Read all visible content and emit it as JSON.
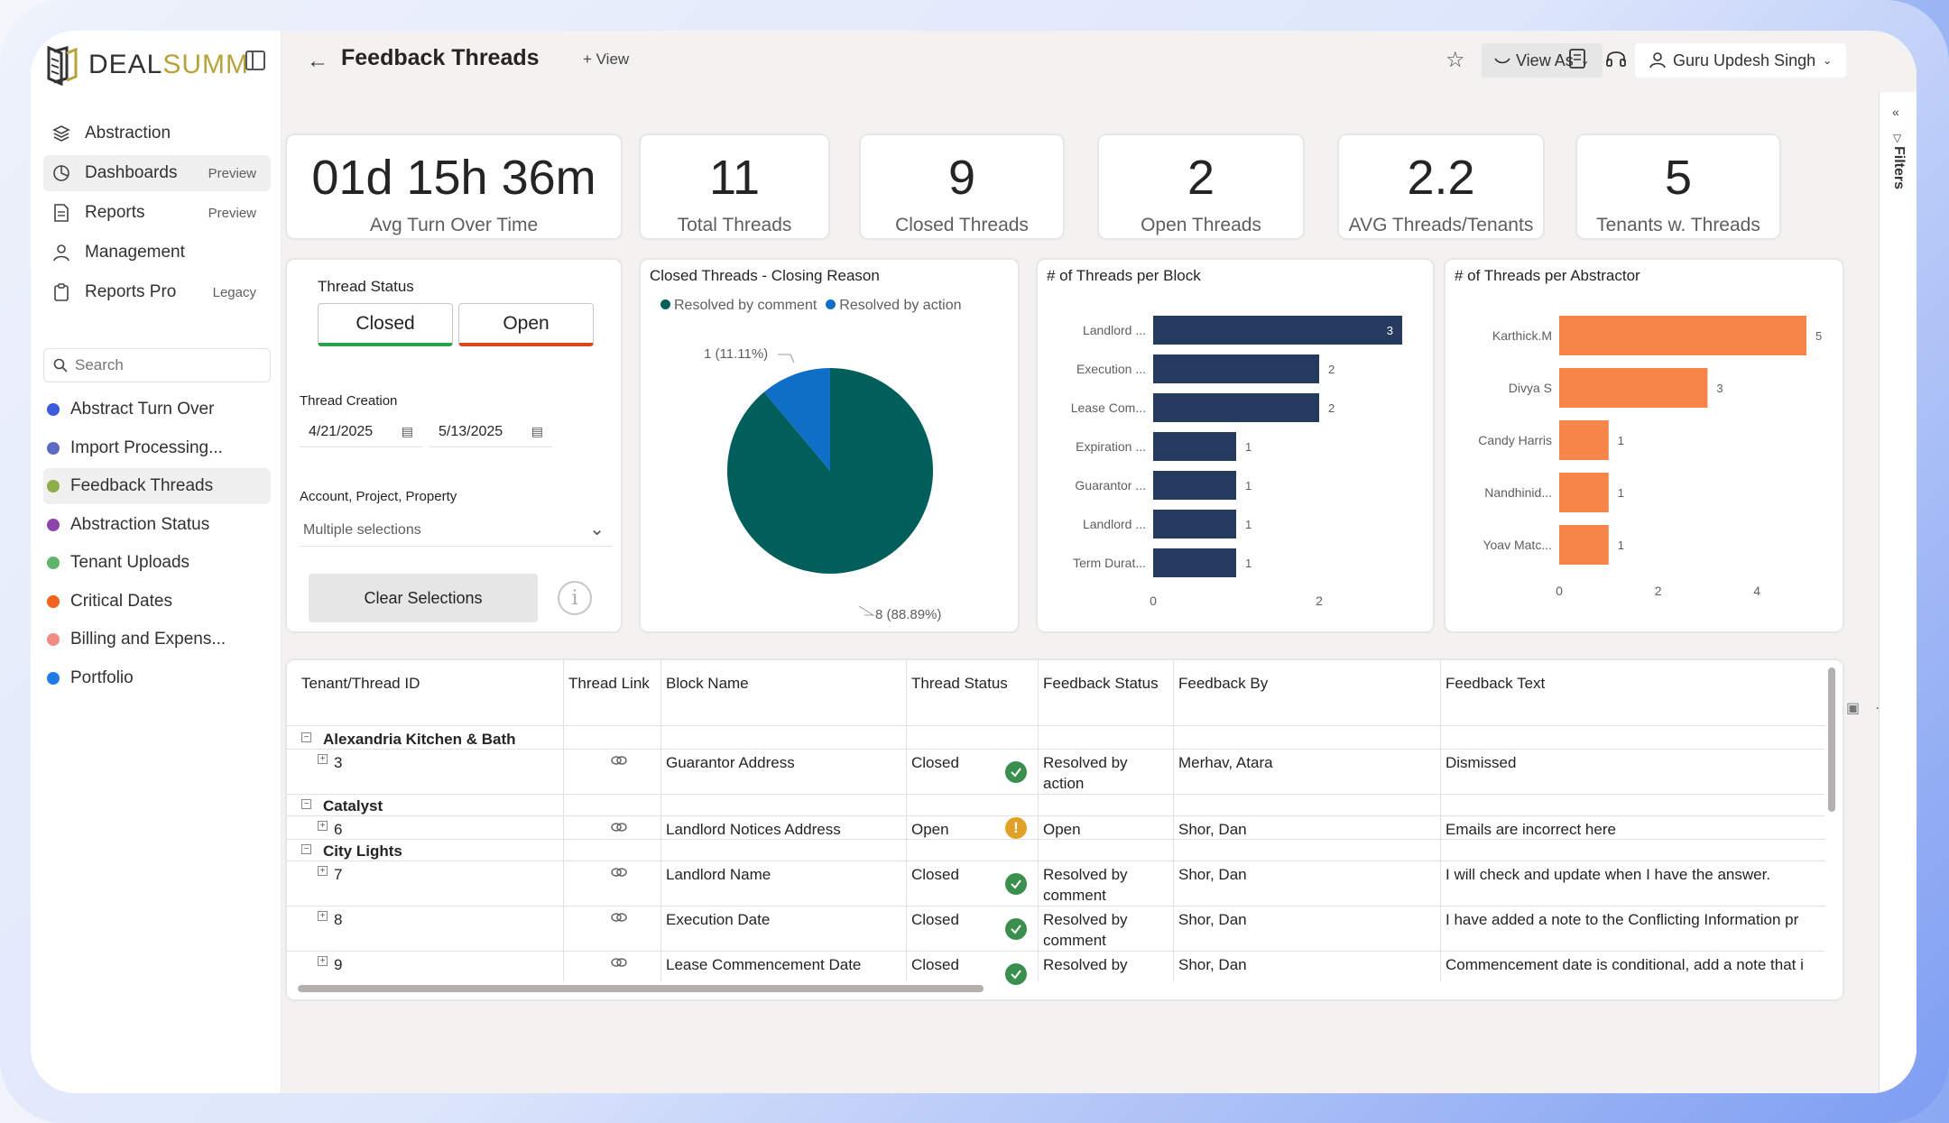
{
  "brand": {
    "logo_a": "DEAL",
    "logo_b": "SUMM"
  },
  "nav": [
    {
      "label": "Abstraction",
      "badge": "",
      "icon": "layers-icon"
    },
    {
      "label": "Dashboards",
      "badge": "Preview",
      "icon": "dashboard-icon"
    },
    {
      "label": "Reports",
      "badge": "Preview",
      "icon": "document-icon"
    },
    {
      "label": "Management",
      "badge": "",
      "icon": "person-icon"
    },
    {
      "label": "Reports Pro",
      "badge": "Legacy",
      "icon": "clipboard-icon"
    }
  ],
  "search": {
    "placeholder": "Search"
  },
  "pages": [
    {
      "label": "Abstract Turn Over",
      "color": "#3b5bdb"
    },
    {
      "label": "Import Processing...",
      "color": "#5c6ac4"
    },
    {
      "label": "Feedback Threads",
      "color": "#8fae4a"
    },
    {
      "label": "Abstraction Status",
      "color": "#8e44ad"
    },
    {
      "label": "Tenant Uploads",
      "color": "#5fb36b"
    },
    {
      "label": "Critical Dates",
      "color": "#f0631c"
    },
    {
      "label": "Billing and Expens...",
      "color": "#f08c84"
    },
    {
      "label": "Portfolio",
      "color": "#1e7be6"
    }
  ],
  "header": {
    "title": "Feedback Threads",
    "add_view": "+ View",
    "view_as": "View As",
    "user": "Guru Updesh Singh"
  },
  "filters_label": "Filters",
  "kpis": [
    {
      "value": "01d 15h 36m",
      "label": "Avg Turn Over Time"
    },
    {
      "value": "11",
      "label": "Total Threads"
    },
    {
      "value": "9",
      "label": "Closed Threads"
    },
    {
      "value": "2",
      "label": "Open Threads"
    },
    {
      "value": "2.2",
      "label": "AVG Threads/Tenants"
    },
    {
      "value": "5",
      "label": "Tenants w. Threads"
    }
  ],
  "slicer": {
    "status_title": "Thread Status",
    "closed": "Closed",
    "open": "Open",
    "creation_title": "Thread Creation",
    "date_from": "4/21/2025",
    "date_to": "5/13/2025",
    "app_title": "Account, Project, Property",
    "app_value": "Multiple selections",
    "clear": "Clear Selections",
    "info": "i"
  },
  "chart_data": [
    {
      "type": "pie",
      "title": "Closed Threads - Closing Reason",
      "series": [
        {
          "name": "Resolved by comment",
          "value": 8,
          "label": "8 (88.89%)",
          "color": "#005f5a"
        },
        {
          "name": "Resolved by action",
          "value": 1,
          "label": "1 (11.11%)",
          "color": "#0f6fc6"
        }
      ],
      "legend": "top"
    },
    {
      "type": "bar",
      "orientation": "horizontal",
      "title": "# of Threads per Block",
      "categories": [
        "Landlord ...",
        "Execution ...",
        "Lease Com...",
        "Expiration ...",
        "Guarantor ...",
        "Landlord ...",
        "Term Durat..."
      ],
      "values": [
        3,
        2,
        2,
        1,
        1,
        1,
        1
      ],
      "xticks": [
        "0",
        "2"
      ],
      "xlim": [
        0,
        3
      ],
      "color": "#243a5e"
    },
    {
      "type": "bar",
      "orientation": "horizontal",
      "title": "# of Threads per Abstractor",
      "categories": [
        "Karthick.M",
        "Divya S",
        "Candy Harris",
        "Nandhinid...",
        "Yoav Matc..."
      ],
      "values": [
        5,
        3,
        1,
        1,
        1
      ],
      "xticks": [
        "0",
        "2",
        "4"
      ],
      "xlim": [
        0,
        5
      ],
      "color": "#f7854a"
    }
  ],
  "table": {
    "columns": [
      "Tenant/Thread ID",
      "Thread Link",
      "Block Name",
      "Thread Status",
      "Feedback Status",
      "Feedback By",
      "Feedback Text"
    ],
    "groups": [
      {
        "name": "Alexandria Kitchen & Bath",
        "rows": [
          {
            "id": "3",
            "block": "Guarantor Address",
            "status": "Closed",
            "fstatus": "Resolved by",
            "fstatus2": "action",
            "by": "Merhav, Atara",
            "text": "Dismissed"
          }
        ]
      },
      {
        "name": "Catalyst",
        "rows": [
          {
            "id": "6",
            "block": "Landlord Notices Address",
            "status": "Open",
            "fstatus": "Open",
            "fstatus2": "",
            "by": "Shor, Dan",
            "text": "Emails are incorrect here"
          }
        ]
      },
      {
        "name": "City Lights",
        "rows": [
          {
            "id": "7",
            "block": "Landlord Name",
            "status": "Closed",
            "fstatus": "Resolved by",
            "fstatus2": "comment",
            "by": "Shor, Dan",
            "text": "I will check and update when I have the answer."
          },
          {
            "id": "8",
            "block": "Execution Date",
            "status": "Closed",
            "fstatus": "Resolved by",
            "fstatus2": "comment",
            "by": "Shor, Dan",
            "text": "I have added a note to the Conflicting Information pr"
          },
          {
            "id": "9",
            "block": "Lease Commencement Date",
            "status": "Closed",
            "fstatus": "Resolved by",
            "fstatus2": "",
            "by": "Shor, Dan",
            "text": "Commencement date is conditional, add a note that i"
          }
        ]
      }
    ]
  }
}
